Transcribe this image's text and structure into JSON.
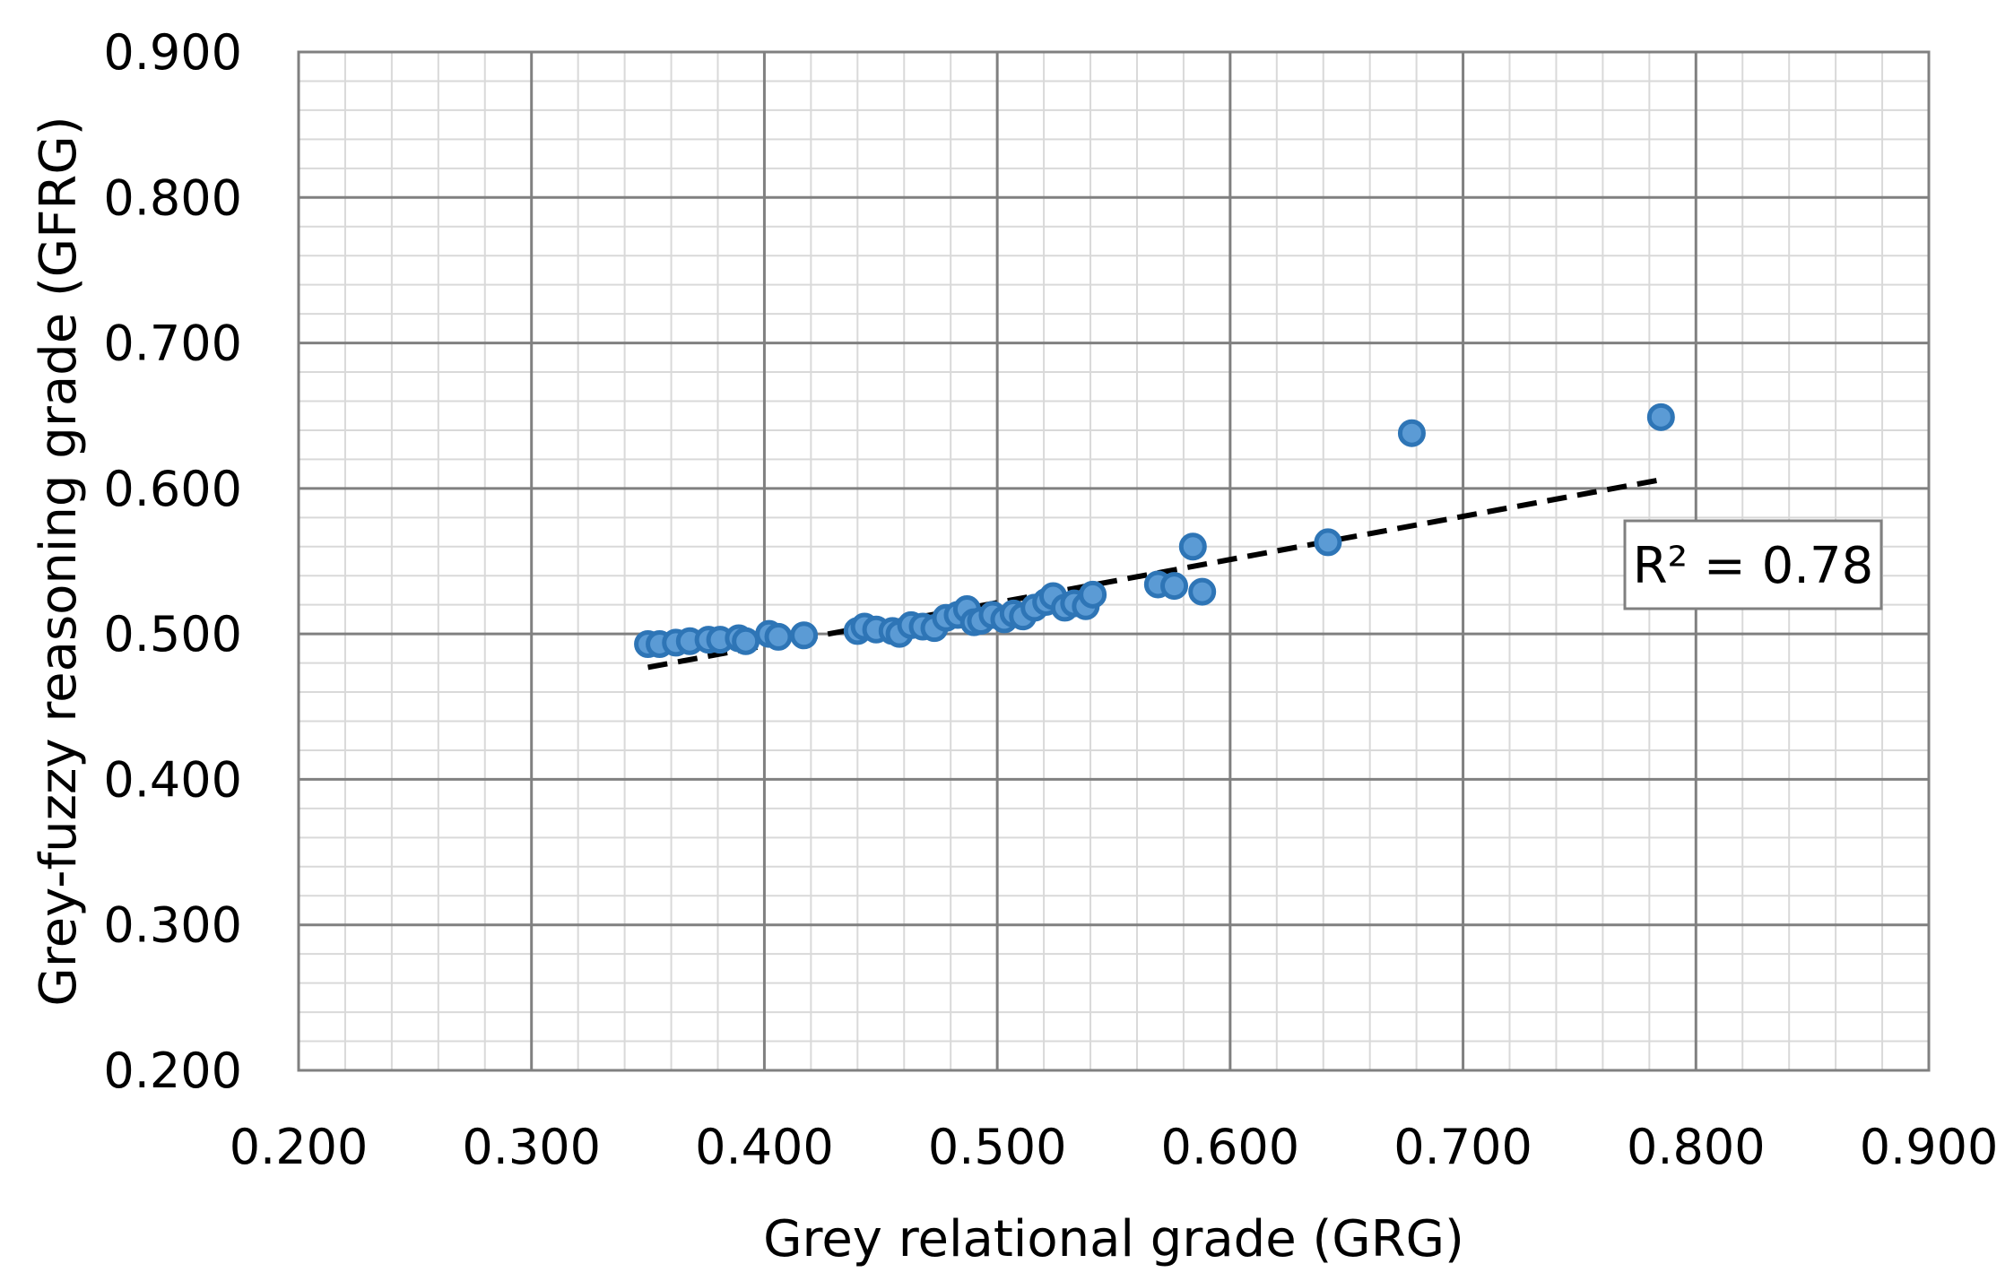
{
  "chart_data": {
    "type": "scatter",
    "title": "",
    "xlabel": "Grey relational grade (GRG)",
    "ylabel": "Grey-fuzzy reasoning grade (GFRG)",
    "xlim": [
      0.2,
      0.9
    ],
    "ylim": [
      0.2,
      0.9
    ],
    "x_ticks": [
      "0.200",
      "0.300",
      "0.400",
      "0.500",
      "0.600",
      "0.700",
      "0.800",
      "0.900"
    ],
    "y_ticks": [
      "0.200",
      "0.300",
      "0.400",
      "0.500",
      "0.600",
      "0.700",
      "0.800",
      "0.900"
    ],
    "grid": {
      "major": true,
      "minor": true,
      "minor_step": 0.02
    },
    "legend": "none",
    "marker_color": "#5B9BD5",
    "marker_edge_color": "#2E75B6",
    "trendline_color": "#000000",
    "points": [
      [
        0.35,
        0.493
      ],
      [
        0.355,
        0.493
      ],
      [
        0.362,
        0.494
      ],
      [
        0.368,
        0.495
      ],
      [
        0.376,
        0.496
      ],
      [
        0.381,
        0.496
      ],
      [
        0.389,
        0.497
      ],
      [
        0.392,
        0.495
      ],
      [
        0.402,
        0.5
      ],
      [
        0.406,
        0.498
      ],
      [
        0.417,
        0.499
      ],
      [
        0.44,
        0.502
      ],
      [
        0.443,
        0.505
      ],
      [
        0.448,
        0.503
      ],
      [
        0.455,
        0.502
      ],
      [
        0.458,
        0.5
      ],
      [
        0.463,
        0.506
      ],
      [
        0.468,
        0.505
      ],
      [
        0.473,
        0.504
      ],
      [
        0.478,
        0.511
      ],
      [
        0.483,
        0.513
      ],
      [
        0.487,
        0.517
      ],
      [
        0.49,
        0.508
      ],
      [
        0.493,
        0.509
      ],
      [
        0.498,
        0.513
      ],
      [
        0.503,
        0.51
      ],
      [
        0.507,
        0.514
      ],
      [
        0.511,
        0.512
      ],
      [
        0.516,
        0.518
      ],
      [
        0.521,
        0.522
      ],
      [
        0.524,
        0.526
      ],
      [
        0.529,
        0.518
      ],
      [
        0.533,
        0.521
      ],
      [
        0.538,
        0.519
      ],
      [
        0.541,
        0.527
      ],
      [
        0.569,
        0.534
      ],
      [
        0.576,
        0.533
      ],
      [
        0.584,
        0.56
      ],
      [
        0.588,
        0.529
      ],
      [
        0.642,
        0.563
      ],
      [
        0.678,
        0.638
      ],
      [
        0.785,
        0.649
      ]
    ],
    "trendline": {
      "type": "linear",
      "x_range": [
        0.35,
        0.785
      ],
      "y_range": [
        0.477,
        0.606
      ],
      "r_squared_label": "R² = 0.78"
    }
  }
}
